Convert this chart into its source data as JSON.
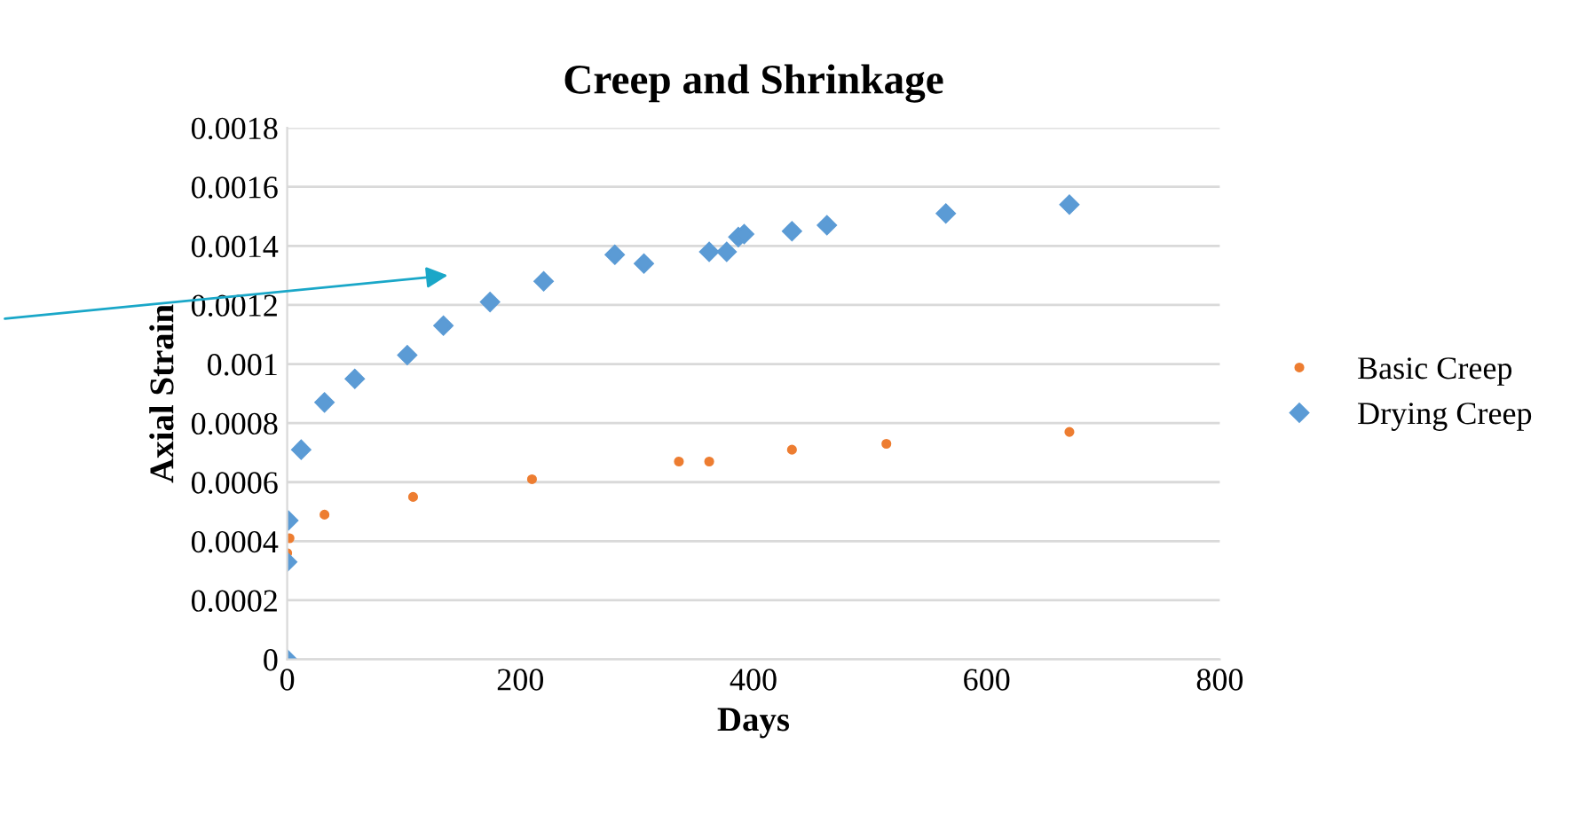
{
  "chart_data": {
    "type": "scatter",
    "title": "Creep and Shrinkage",
    "xlabel": "Days",
    "ylabel": "Axial Strain",
    "xlim": [
      0,
      800
    ],
    "xticks": [
      0,
      200,
      400,
      600,
      800
    ],
    "ylim": [
      0,
      0.0018
    ],
    "yticks": [
      0,
      0.0002,
      0.0004,
      0.0006,
      0.0008,
      0.001,
      0.0012,
      0.0014,
      0.0016,
      0.0018
    ],
    "grid": "y",
    "legend": "right",
    "series": [
      {
        "name": "Basic Creep",
        "color": "#ed7d31",
        "marker": "circle",
        "x": [
          0,
          2,
          32,
          108,
          210,
          336,
          362,
          433,
          514,
          671
        ],
        "values": [
          0.00036,
          0.00041,
          0.00049,
          0.00055,
          0.00061,
          0.00067,
          0.00067,
          0.00071,
          0.00073,
          0.00077
        ]
      },
      {
        "name": "Drying Creep",
        "color": "#5b9bd5",
        "marker": "diamond",
        "x": [
          0,
          0,
          1,
          12,
          32,
          58,
          103,
          134,
          174,
          220,
          281,
          306,
          362,
          377,
          387,
          392,
          433,
          463,
          565,
          671
        ],
        "values": [
          0,
          0.00033,
          0.00047,
          0.00071,
          0.00087,
          0.00095,
          0.00103,
          0.00113,
          0.00121,
          0.00128,
          0.00137,
          0.00134,
          0.00138,
          0.00138,
          0.00143,
          0.00144,
          0.00145,
          0.00147,
          0.00151,
          0.00154
        ]
      }
    ]
  }
}
